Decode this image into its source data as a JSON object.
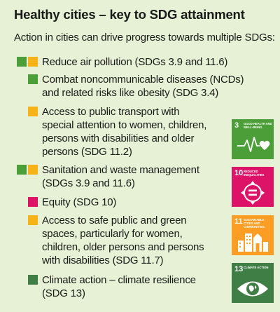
{
  "title": "Healthy cities – key to SDG attainment",
  "intro": "Action in cities can drive progress towards multiple SDGs:",
  "colors": {
    "background": "#e6f1d5",
    "sdg3_green": "#4c9f38",
    "sdg11_yellow": "#f6b318",
    "sdg10_magenta": "#dd1367",
    "sdg11_orange": "#fd9d24",
    "sdg13_darkgreen": "#3f7e44"
  },
  "items": [
    {
      "text": "Reduce air pollution (SDGs 3.9 and 11.6)",
      "markers": [
        "#4c9f38",
        "#f6b318"
      ]
    },
    {
      "text": "Combat noncommunicable diseases (NCDs)\nand related risks like obesity (SDG 3.4)",
      "markers": [
        "#4c9f38"
      ]
    },
    {
      "text": "Access to public transport with\nspecial attention to women, children,\npersons with disabilities and older\npersons (SDG 11.2)",
      "markers": [
        "#f6b318"
      ]
    },
    {
      "text": "Sanitation and waste management\n(SDGs 3.9 and 11.6)",
      "markers": [
        "#4c9f38",
        "#f6b318"
      ]
    },
    {
      "text": "Equity (SDG 10)",
      "markers": [
        "#dd1367"
      ]
    },
    {
      "text": "Access to safe public and green\nspaces, particularly for women,\nchildren, older persons and persons\nwith disabilities (SDG 11.7)",
      "markers": [
        "#f6b318"
      ]
    },
    {
      "text": "Climate action – climate resilience\n(SDG 13)",
      "markers": [
        "#3f7e44"
      ]
    }
  ],
  "tiles": [
    {
      "number": "3",
      "label": "Good health and well-being",
      "color": "#4c9f38",
      "icon": "heartbeat-icon"
    },
    {
      "number": "10",
      "label": "Reduced inequalities",
      "color": "#dd1367",
      "icon": "equality-icon"
    },
    {
      "number": "11",
      "label": "Sustainable cities and communities",
      "color": "#fd9d24",
      "icon": "city-buildings-icon"
    },
    {
      "number": "13",
      "label": "Climate action",
      "color": "#3f7e44",
      "icon": "eye-globe-icon"
    }
  ]
}
